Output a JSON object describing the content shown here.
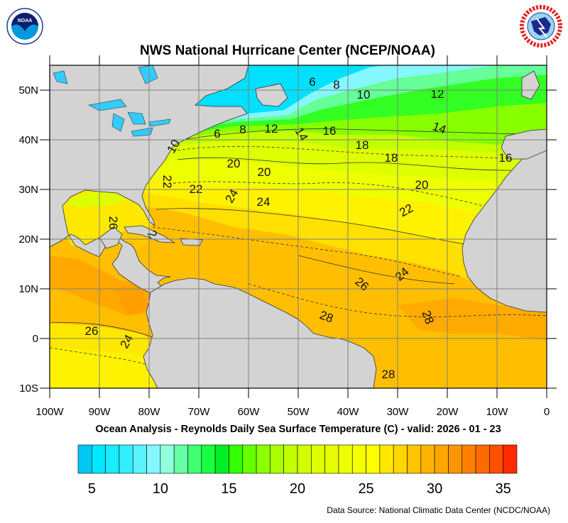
{
  "header": {
    "title": "NWS National Hurricane Center (NCEP/NOAA)",
    "left_logo": "NOAA",
    "right_logo": "NATIONAL WEATHER SERVICE"
  },
  "map": {
    "lat_labels": [
      "50N",
      "40N",
      "30N",
      "20N",
      "10N",
      "0",
      "10S"
    ],
    "lon_labels": [
      "100W",
      "90W",
      "80W",
      "70W",
      "60W",
      "50W",
      "40W",
      "30W",
      "20W",
      "10W",
      "0"
    ],
    "contour_labels": [
      "6",
      "8",
      "10",
      "12",
      "6",
      "8",
      "12",
      "14",
      "16",
      "14",
      "18",
      "18",
      "16",
      "10",
      "20",
      "20",
      "20",
      "22",
      "22",
      "24",
      "24",
      "22",
      "26",
      "2",
      "24",
      "26",
      "28",
      "28",
      "26",
      "24",
      "28"
    ],
    "colors": {
      "land": "#d3d3d3",
      "lakes": "#33ccff",
      "grid": "#808080"
    }
  },
  "caption": "Ocean Analysis - Reynolds Daily Sea Surface Temperature (C) - valid: 2026 - 01 - 23",
  "colorbar": {
    "range": [
      4,
      36
    ],
    "tick_labels": [
      "5",
      "10",
      "15",
      "20",
      "25",
      "30",
      "35"
    ],
    "colors": [
      "#00c8f0",
      "#00e8ff",
      "#1aebff",
      "#33eeff",
      "#5cf2ff",
      "#85f7ff",
      "#90ffdc",
      "#66ffa6",
      "#40ff70",
      "#1aff40",
      "#00ee22",
      "#33ff00",
      "#66ff00",
      "#8cff00",
      "#aaff00",
      "#c0ff00",
      "#d0ff00",
      "#ddff00",
      "#e6ff00",
      "#eeff00",
      "#f5ff00",
      "#ffff00",
      "#ffe800",
      "#ffd600",
      "#ffc400",
      "#ffb300",
      "#ffa600",
      "#ff9500",
      "#ff8000",
      "#ff6a00",
      "#ff5000",
      "#ff2a00"
    ]
  },
  "footer": {
    "source": "Data Source: National Climatic Data Center (NCDC/NOAA)"
  }
}
